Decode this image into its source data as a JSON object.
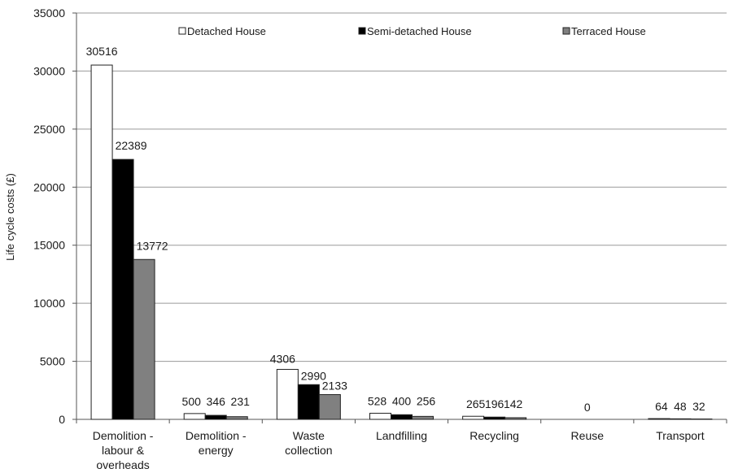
{
  "chart_data": {
    "type": "bar",
    "title": "",
    "xlabel": "",
    "ylabel": "Life cycle costs (£)",
    "ylim": [
      0,
      35000
    ],
    "yticks": [
      0,
      5000,
      10000,
      15000,
      20000,
      25000,
      30000,
      35000
    ],
    "grid": true,
    "legend_position": "top",
    "categories": [
      [
        "Demolition -",
        "labour &",
        "overheads"
      ],
      [
        "Demolition -",
        "energy"
      ],
      [
        "Waste",
        "collection"
      ],
      [
        "Landfilling"
      ],
      [
        "Recycling"
      ],
      [
        "Reuse"
      ],
      [
        "Transport"
      ]
    ],
    "series": [
      {
        "name": "Detached House",
        "color": "#ffffff",
        "values": [
          30516,
          500,
          4306,
          528,
          265,
          0,
          64
        ]
      },
      {
        "name": "Semi-detached House",
        "color": "#000000",
        "values": [
          22389,
          346,
          2990,
          400,
          196,
          null,
          48
        ]
      },
      {
        "name": "Terraced House",
        "color": "#808080",
        "values": [
          13772,
          231,
          2133,
          256,
          142,
          null,
          32
        ]
      }
    ]
  }
}
